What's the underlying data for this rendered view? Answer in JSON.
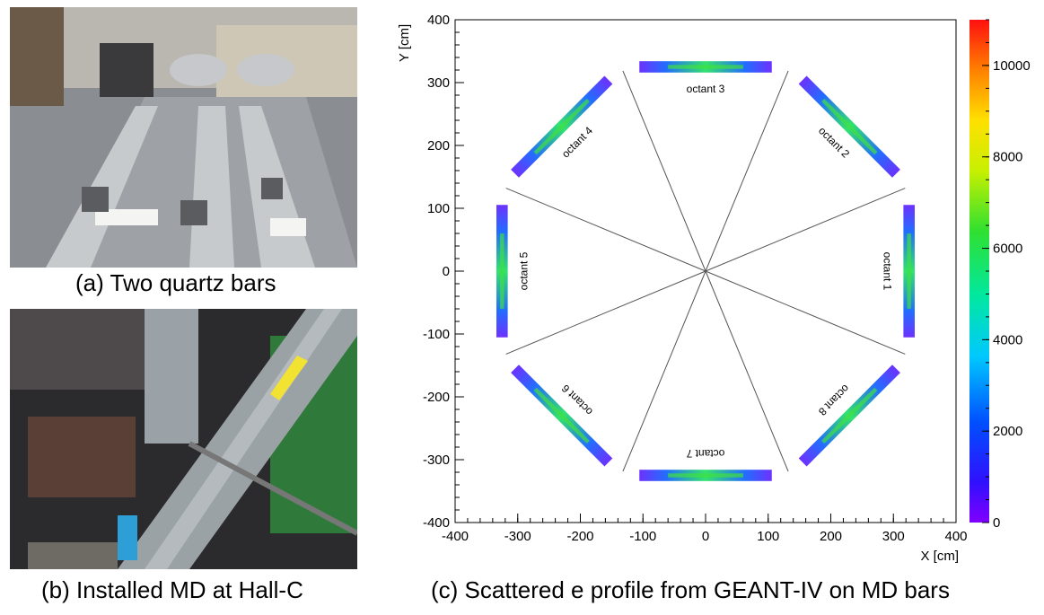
{
  "captions": {
    "a": "(a) Two quartz bars",
    "b": "(b) Installed MD at Hall-C",
    "c": "(c) Scattered e profile from GEANT-IV  on MD bars"
  },
  "chart_data": {
    "type": "heatmap",
    "title": "",
    "xlabel": "X [cm]",
    "ylabel": "Y [cm]",
    "xlim": [
      -400,
      400
    ],
    "ylim": [
      -400,
      400
    ],
    "x_ticks": [
      -400,
      -300,
      -200,
      -100,
      0,
      100,
      200,
      300,
      400
    ],
    "y_ticks": [
      -400,
      -300,
      -200,
      -100,
      0,
      100,
      200,
      300,
      400
    ],
    "colorbar": {
      "range": [
        0,
        11000
      ],
      "ticks": [
        0,
        2000,
        4000,
        6000,
        8000,
        10000
      ]
    },
    "octant_labels": [
      {
        "name": "octant 1",
        "angle_deg": 0
      },
      {
        "name": "octant 2",
        "angle_deg": 45
      },
      {
        "name": "octant 3",
        "angle_deg": 90
      },
      {
        "name": "octant 4",
        "angle_deg": 135
      },
      {
        "name": "octant 5",
        "angle_deg": 180
      },
      {
        "name": "octant 6",
        "angle_deg": 225
      },
      {
        "name": "octant 7",
        "angle_deg": 270
      },
      {
        "name": "octant 8",
        "angle_deg": 315
      }
    ],
    "bars": {
      "radial_distance_cm": 325,
      "half_length_cm": 100,
      "half_width_cm": 9,
      "peak_counts": 9000
    },
    "grid": false,
    "legend": "none"
  }
}
